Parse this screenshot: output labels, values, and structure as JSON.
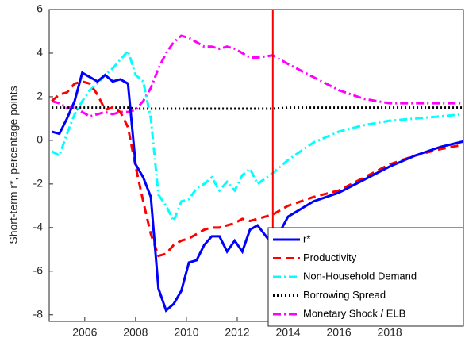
{
  "chart_data": {
    "type": "line",
    "ylabel": "Short-term r*, percentage points",
    "x": [
      2004.7,
      2005.0,
      2005.3,
      2005.6,
      2005.9,
      2006.2,
      2006.5,
      2006.8,
      2007.1,
      2007.4,
      2007.7,
      2008.0,
      2008.3,
      2008.6,
      2008.9,
      2009.2,
      2009.5,
      2009.8,
      2010.1,
      2010.4,
      2010.7,
      2011.0,
      2011.3,
      2011.6,
      2011.9,
      2012.2,
      2012.5,
      2012.8,
      2013.4,
      2014.0,
      2015.0,
      2016.0,
      2017.0,
      2018.0,
      2019.0,
      2020.0,
      2020.9
    ],
    "series": [
      {
        "name": "r*",
        "color": "#0000ff",
        "dash": "solid",
        "values": [
          0.4,
          0.3,
          1.0,
          1.8,
          3.1,
          2.9,
          2.7,
          3.0,
          2.7,
          2.8,
          2.6,
          -1.1,
          -1.7,
          -2.6,
          -6.8,
          -7.8,
          -7.5,
          -6.9,
          -5.6,
          -5.5,
          -4.8,
          -4.4,
          -4.4,
          -5.1,
          -4.6,
          -5.1,
          -4.1,
          -3.9,
          -4.8,
          -3.5,
          -2.8,
          -2.4,
          -1.8,
          -1.2,
          -0.7,
          -0.3,
          -0.05
        ]
      },
      {
        "name": "Productivity",
        "color": "#ff0000",
        "dash": "dashed",
        "values": [
          1.8,
          2.1,
          2.2,
          2.6,
          2.7,
          2.6,
          2.1,
          1.4,
          1.5,
          1.3,
          0.6,
          -1.2,
          -2.8,
          -4.3,
          -5.3,
          -5.2,
          -4.8,
          -4.6,
          -4.5,
          -4.3,
          -4.1,
          -4.0,
          -4.0,
          -3.9,
          -3.8,
          -3.6,
          -3.7,
          -3.6,
          -3.4,
          -3.0,
          -2.6,
          -2.3,
          -1.7,
          -1.1,
          -0.7,
          -0.4,
          -0.2
        ]
      },
      {
        "name": "Non-Household Demand",
        "color": "#00ffff",
        "dash": "dashdot",
        "values": [
          -0.5,
          -0.7,
          0.3,
          1.2,
          1.8,
          2.3,
          2.6,
          3.0,
          3.3,
          3.7,
          4.1,
          3.0,
          2.7,
          1.0,
          -2.5,
          -3.0,
          -3.7,
          -2.8,
          -2.7,
          -2.2,
          -2.0,
          -1.7,
          -2.3,
          -1.9,
          -2.3,
          -1.6,
          -1.3,
          -2.0,
          -1.5,
          -0.9,
          -0.1,
          0.4,
          0.7,
          0.9,
          1.0,
          1.1,
          1.2
        ]
      },
      {
        "name": "Borrowing Spread",
        "color": "#000000",
        "dash": "dotted",
        "values": [
          1.5,
          1.5,
          1.5,
          1.5,
          1.5,
          1.5,
          1.5,
          1.5,
          1.5,
          1.5,
          1.5,
          1.45,
          1.45,
          1.45,
          1.45,
          1.45,
          1.45,
          1.45,
          1.45,
          1.45,
          1.45,
          1.45,
          1.45,
          1.45,
          1.45,
          1.45,
          1.45,
          1.45,
          1.45,
          1.5,
          1.5,
          1.5,
          1.5,
          1.5,
          1.5,
          1.5,
          1.5
        ]
      },
      {
        "name": "Monetary Shock / ELB",
        "color": "#ff00ff",
        "dash": "dashdot",
        "values": [
          1.8,
          1.7,
          1.5,
          1.5,
          1.3,
          1.1,
          1.2,
          1.3,
          1.2,
          1.3,
          1.3,
          1.4,
          1.8,
          2.4,
          3.3,
          4.0,
          4.5,
          4.8,
          4.7,
          4.5,
          4.3,
          4.3,
          4.2,
          4.3,
          4.2,
          4.0,
          3.8,
          3.8,
          3.9,
          3.5,
          2.9,
          2.3,
          1.9,
          1.7,
          1.7,
          1.7,
          1.7
        ]
      }
    ],
    "vline": 2013.4,
    "vline_color": "#ff0000",
    "xlim": [
      2004.6,
      2020.9
    ],
    "xticks": [
      2006,
      2008,
      2010,
      2012,
      2014,
      2016,
      2018
    ],
    "ylim": [
      -8.3,
      6
    ],
    "yticks": [
      -8,
      -6,
      -4,
      -2,
      0,
      2,
      4,
      6
    ],
    "grid": false,
    "legend": "lower right"
  }
}
